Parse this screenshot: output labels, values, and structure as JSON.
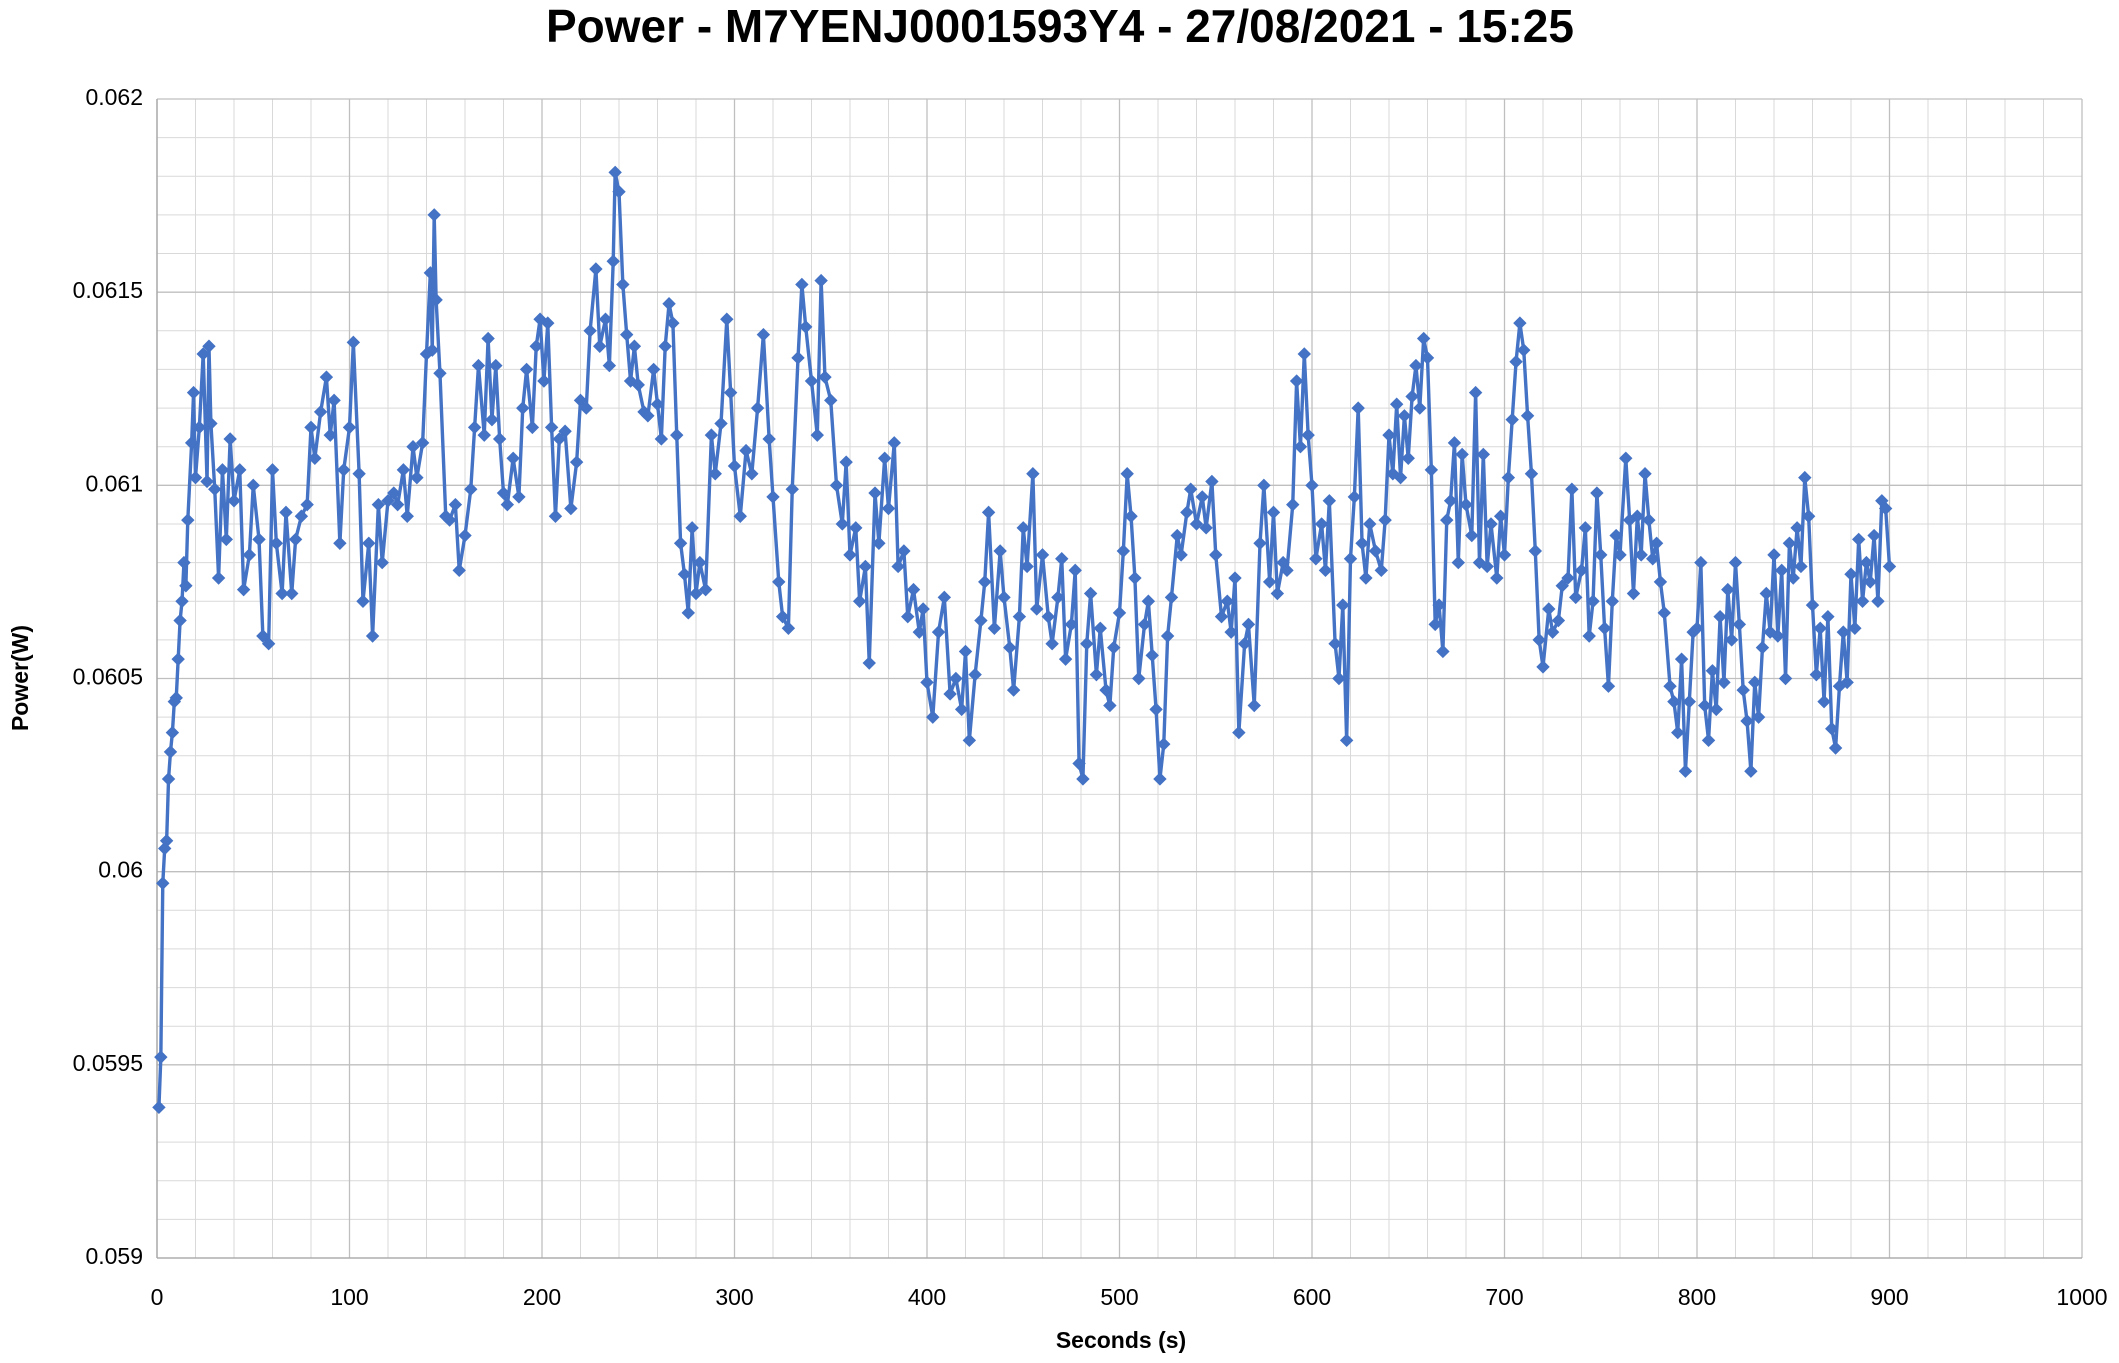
{
  "chart_data": {
    "type": "line",
    "title": "Power - M7YENJ0001593Y4 - 27/08/2021 - 15:25",
    "x_label": "Seconds (s)",
    "y_label": "Power(W)",
    "color": "#4472c4",
    "marker": "diamond",
    "grid": true,
    "minor_grid": true,
    "xlim": [
      0,
      1000
    ],
    "xticks": [
      0,
      100,
      200,
      300,
      400,
      500,
      600,
      700,
      800,
      900,
      1000
    ],
    "ylim": [
      0.059,
      0.062
    ],
    "yticks": [
      0.059,
      0.0595,
      0.06,
      0.0605,
      0.061,
      0.0615,
      0.062
    ],
    "x": [
      1,
      2,
      3,
      4,
      5,
      6,
      7,
      8,
      9,
      10,
      11,
      12,
      13,
      14,
      15,
      16,
      18,
      19,
      20,
      22,
      24,
      26,
      27,
      28,
      30,
      32,
      34,
      36,
      38,
      40,
      43,
      45,
      48,
      50,
      53,
      55,
      58,
      60,
      62,
      65,
      67,
      70,
      72,
      75,
      78,
      80,
      82,
      85,
      88,
      90,
      92,
      95,
      97,
      100,
      102,
      105,
      107,
      110,
      112,
      115,
      117,
      120,
      123,
      125,
      128,
      130,
      133,
      135,
      138,
      140,
      142,
      143,
      144,
      145,
      147,
      150,
      152,
      155,
      157,
      160,
      163,
      165,
      167,
      170,
      172,
      174,
      176,
      178,
      180,
      182,
      185,
      188,
      190,
      192,
      195,
      197,
      199,
      201,
      203,
      205,
      207,
      209,
      212,
      215,
      218,
      220,
      223,
      225,
      228,
      230,
      233,
      235,
      237,
      238,
      240,
      242,
      244,
      246,
      248,
      250,
      253,
      255,
      258,
      260,
      262,
      264,
      266,
      268,
      270,
      272,
      274,
      276,
      278,
      280,
      282,
      285,
      288,
      290,
      293,
      296,
      298,
      300,
      303,
      306,
      309,
      312,
      315,
      318,
      320,
      323,
      325,
      328,
      330,
      333,
      335,
      337,
      340,
      343,
      345,
      347,
      350,
      353,
      356,
      358,
      360,
      363,
      365,
      368,
      370,
      373,
      375,
      378,
      380,
      383,
      385,
      388,
      390,
      393,
      396,
      398,
      400,
      403,
      406,
      409,
      412,
      415,
      418,
      420,
      422,
      425,
      428,
      430,
      432,
      435,
      438,
      440,
      443,
      445,
      448,
      450,
      452,
      455,
      457,
      460,
      463,
      465,
      468,
      470,
      472,
      475,
      477,
      479,
      481,
      483,
      485,
      488,
      490,
      493,
      495,
      497,
      500,
      502,
      504,
      506,
      508,
      510,
      513,
      515,
      517,
      519,
      521,
      523,
      525,
      527,
      530,
      532,
      535,
      537,
      540,
      543,
      545,
      548,
      550,
      553,
      556,
      558,
      560,
      562,
      565,
      567,
      570,
      573,
      575,
      578,
      580,
      582,
      585,
      587,
      590,
      592,
      594,
      596,
      598,
      600,
      602,
      605,
      607,
      609,
      612,
      614,
      616,
      618,
      620,
      622,
      624,
      626,
      628,
      630,
      633,
      636,
      638,
      640,
      642,
      644,
      646,
      648,
      650,
      652,
      654,
      656,
      658,
      660,
      662,
      664,
      666,
      668,
      670,
      672,
      674,
      676,
      678,
      680,
      683,
      685,
      687,
      689,
      691,
      693,
      696,
      698,
      700,
      702,
      704,
      706,
      708,
      710,
      712,
      714,
      716,
      718,
      720,
      723,
      725,
      728,
      730,
      733,
      735,
      737,
      740,
      742,
      744,
      746,
      748,
      750,
      752,
      754,
      756,
      758,
      760,
      763,
      765,
      767,
      769,
      771,
      773,
      775,
      777,
      779,
      781,
      783,
      786,
      788,
      790,
      792,
      794,
      796,
      798,
      800,
      802,
      804,
      806,
      808,
      810,
      812,
      814,
      816,
      818,
      820,
      822,
      824,
      826,
      828,
      830,
      832,
      834,
      836,
      838,
      840,
      842,
      844,
      846,
      848,
      850,
      852,
      854,
      856,
      858,
      860,
      862,
      864,
      866,
      868,
      870,
      872,
      874,
      876,
      878,
      880,
      882,
      884,
      886,
      888,
      890,
      892,
      894,
      896,
      898,
      900
    ],
    "values": [
      0.05939,
      0.05952,
      0.05997,
      0.06006,
      0.06008,
      0.06024,
      0.06031,
      0.06036,
      0.06044,
      0.06045,
      0.06055,
      0.06065,
      0.0607,
      0.0608,
      0.06074,
      0.06091,
      0.06111,
      0.06124,
      0.06102,
      0.06115,
      0.06134,
      0.06101,
      0.06136,
      0.06116,
      0.06099,
      0.06076,
      0.06104,
      0.06086,
      0.06112,
      0.06096,
      0.06104,
      0.06073,
      0.06082,
      0.061,
      0.06086,
      0.06061,
      0.06059,
      0.06104,
      0.06085,
      0.06072,
      0.06093,
      0.06072,
      0.06086,
      0.06092,
      0.06095,
      0.06115,
      0.06107,
      0.06119,
      0.06128,
      0.06113,
      0.06122,
      0.06085,
      0.06104,
      0.06115,
      0.06137,
      0.06103,
      0.0607,
      0.06085,
      0.06061,
      0.06095,
      0.0608,
      0.06096,
      0.06098,
      0.06095,
      0.06104,
      0.06092,
      0.0611,
      0.06102,
      0.06111,
      0.06134,
      0.06155,
      0.06135,
      0.0617,
      0.06148,
      0.06129,
      0.06092,
      0.06091,
      0.06095,
      0.06078,
      0.06087,
      0.06099,
      0.06115,
      0.06131,
      0.06113,
      0.06138,
      0.06117,
      0.06131,
      0.06112,
      0.06098,
      0.06095,
      0.06107,
      0.06097,
      0.0612,
      0.0613,
      0.06115,
      0.06136,
      0.06143,
      0.06127,
      0.06142,
      0.06115,
      0.06092,
      0.06112,
      0.06114,
      0.06094,
      0.06106,
      0.06122,
      0.0612,
      0.0614,
      0.06156,
      0.06136,
      0.06143,
      0.06131,
      0.06158,
      0.06181,
      0.06176,
      0.06152,
      0.06139,
      0.06127,
      0.06136,
      0.06126,
      0.06119,
      0.06118,
      0.0613,
      0.06121,
      0.06112,
      0.06136,
      0.06147,
      0.06142,
      0.06113,
      0.06085,
      0.06077,
      0.06067,
      0.06089,
      0.06072,
      0.0608,
      0.06073,
      0.06113,
      0.06103,
      0.06116,
      0.06143,
      0.06124,
      0.06105,
      0.06092,
      0.06109,
      0.06103,
      0.0612,
      0.06139,
      0.06112,
      0.06097,
      0.06075,
      0.06066,
      0.06063,
      0.06099,
      0.06133,
      0.06152,
      0.06141,
      0.06127,
      0.06113,
      0.06153,
      0.06128,
      0.06122,
      0.061,
      0.0609,
      0.06106,
      0.06082,
      0.06089,
      0.0607,
      0.06079,
      0.06054,
      0.06098,
      0.06085,
      0.06107,
      0.06094,
      0.06111,
      0.06079,
      0.06083,
      0.06066,
      0.06073,
      0.06062,
      0.06068,
      0.06049,
      0.0604,
      0.06062,
      0.06071,
      0.06046,
      0.0605,
      0.06042,
      0.06057,
      0.06034,
      0.06051,
      0.06065,
      0.06075,
      0.06093,
      0.06063,
      0.06083,
      0.06071,
      0.06058,
      0.06047,
      0.06066,
      0.06089,
      0.06079,
      0.06103,
      0.06068,
      0.06082,
      0.06066,
      0.06059,
      0.06071,
      0.06081,
      0.06055,
      0.06064,
      0.06078,
      0.06028,
      0.06024,
      0.06059,
      0.06072,
      0.06051,
      0.06063,
      0.06047,
      0.06043,
      0.06058,
      0.06067,
      0.06083,
      0.06103,
      0.06092,
      0.06076,
      0.0605,
      0.06064,
      0.0607,
      0.06056,
      0.06042,
      0.06024,
      0.06033,
      0.06061,
      0.06071,
      0.06087,
      0.06082,
      0.06093,
      0.06099,
      0.0609,
      0.06097,
      0.06089,
      0.06101,
      0.06082,
      0.06066,
      0.0607,
      0.06062,
      0.06076,
      0.06036,
      0.06059,
      0.06064,
      0.06043,
      0.06085,
      0.061,
      0.06075,
      0.06093,
      0.06072,
      0.0608,
      0.06078,
      0.06095,
      0.06127,
      0.0611,
      0.06134,
      0.06113,
      0.061,
      0.06081,
      0.0609,
      0.06078,
      0.06096,
      0.06059,
      0.0605,
      0.06069,
      0.06034,
      0.06081,
      0.06097,
      0.0612,
      0.06085,
      0.06076,
      0.0609,
      0.06083,
      0.06078,
      0.06091,
      0.06113,
      0.06103,
      0.06121,
      0.06102,
      0.06118,
      0.06107,
      0.06123,
      0.06131,
      0.0612,
      0.06138,
      0.06133,
      0.06104,
      0.06064,
      0.06069,
      0.06057,
      0.06091,
      0.06096,
      0.06111,
      0.0608,
      0.06108,
      0.06095,
      0.06087,
      0.06124,
      0.0608,
      0.06108,
      0.06079,
      0.0609,
      0.06076,
      0.06092,
      0.06082,
      0.06102,
      0.06117,
      0.06132,
      0.06142,
      0.06135,
      0.06118,
      0.06103,
      0.06083,
      0.0606,
      0.06053,
      0.06068,
      0.06062,
      0.06065,
      0.06074,
      0.06076,
      0.06099,
      0.06071,
      0.06078,
      0.06089,
      0.06061,
      0.0607,
      0.06098,
      0.06082,
      0.06063,
      0.06048,
      0.0607,
      0.06087,
      0.06082,
      0.06107,
      0.06091,
      0.06072,
      0.06092,
      0.06082,
      0.06103,
      0.06091,
      0.06081,
      0.06085,
      0.06075,
      0.06067,
      0.06048,
      0.06044,
      0.06036,
      0.06055,
      0.06026,
      0.06044,
      0.06062,
      0.06063,
      0.0608,
      0.06043,
      0.06034,
      0.06052,
      0.06042,
      0.06066,
      0.06049,
      0.06073,
      0.0606,
      0.0608,
      0.06064,
      0.06047,
      0.06039,
      0.06026,
      0.06049,
      0.0604,
      0.06058,
      0.06072,
      0.06062,
      0.06082,
      0.06061,
      0.06078,
      0.0605,
      0.06085,
      0.06076,
      0.06089,
      0.06079,
      0.06102,
      0.06092,
      0.06069,
      0.06051,
      0.06063,
      0.06044,
      0.06066,
      0.06037,
      0.06032,
      0.06048,
      0.06062,
      0.06049,
      0.06077,
      0.06063,
      0.06086,
      0.0607,
      0.0608,
      0.06075,
      0.06087,
      0.0607,
      0.06096,
      0.06094,
      0.06079
    ]
  }
}
